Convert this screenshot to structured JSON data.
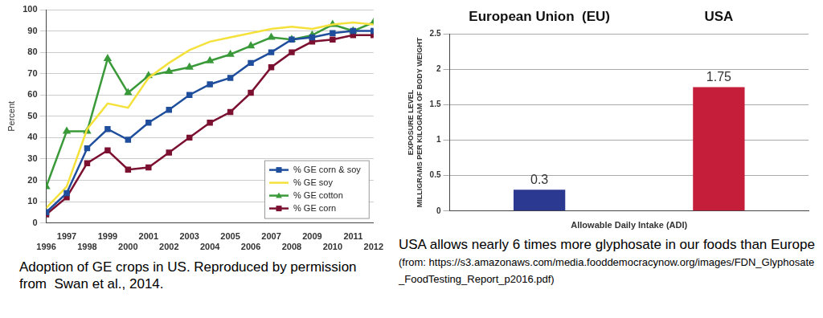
{
  "chart_data": [
    {
      "type": "line",
      "caption": "Adoption of GE crops in US. Reproduced by permission from  Swan et al., 2014.",
      "y_label": "Percent",
      "x": [
        1996,
        1997,
        1998,
        1999,
        2000,
        2001,
        2002,
        2003,
        2004,
        2005,
        2006,
        2007,
        2008,
        2009,
        2010,
        2011,
        2012
      ],
      "xlim": [
        1996,
        2012
      ],
      "xticks": [
        1996,
        1997,
        1998,
        1999,
        2000,
        2001,
        2002,
        2003,
        2004,
        2005,
        2006,
        2007,
        2008,
        2009,
        2010,
        2011,
        2012
      ],
      "ylim": [
        0,
        100
      ],
      "yticks": [
        0,
        10,
        20,
        30,
        40,
        50,
        60,
        70,
        80,
        90,
        100
      ],
      "grid": "y",
      "legend": "lower right",
      "series": [
        {
          "name": "% GE corn & soy",
          "color": "#1f4e9c",
          "marker": "square",
          "values": [
            5,
            14,
            35,
            44,
            39,
            47,
            53,
            60,
            65,
            68,
            75,
            80,
            86,
            87,
            89,
            90,
            90
          ]
        },
        {
          "name": "% GE soy",
          "color": "#f5e13c",
          "marker": "none",
          "values": [
            7,
            17,
            44,
            56,
            54,
            68,
            75,
            81,
            85,
            87,
            89,
            91,
            92,
            91,
            93,
            94,
            93
          ]
        },
        {
          "name": "% GE cotton",
          "color": "#3a9a3a",
          "marker": "triangle",
          "values": [
            17,
            43,
            43,
            77,
            61,
            69,
            71,
            73,
            76,
            79,
            83,
            87,
            86,
            88,
            93,
            90,
            94
          ]
        },
        {
          "name": "% GE corn",
          "color": "#7b1030",
          "marker": "square",
          "values": [
            4,
            12,
            28,
            34,
            25,
            26,
            33,
            40,
            47,
            52,
            61,
            73,
            80,
            85,
            86,
            88,
            88
          ]
        }
      ]
    },
    {
      "type": "bar",
      "caption": "USA allows nearly 6 times more glyphosate in our foods than Europe",
      "source": "(from: https://s3.amazonaws.com/media.fooddemocracynow.org/images/FDN_Glyphosate_FoodTesting_Report_p2016.pdf)",
      "categories": [
        "European Union  (EU)",
        "USA"
      ],
      "values": [
        0.3,
        1.75
      ],
      "colors": [
        "#2b3990",
        "#c41e3a"
      ],
      "y_label": [
        "EXPOSURE LEVEL",
        "MILLIGRAMS PER KILOGRAM OF BODY WEIGHT"
      ],
      "x_label": "Allowable Daily Intake (ADI)",
      "ylim": [
        0,
        2.5
      ],
      "yticks": [
        0,
        0.5,
        1,
        1.5,
        2,
        2.5
      ],
      "grid": "y",
      "data_labels": true
    }
  ]
}
